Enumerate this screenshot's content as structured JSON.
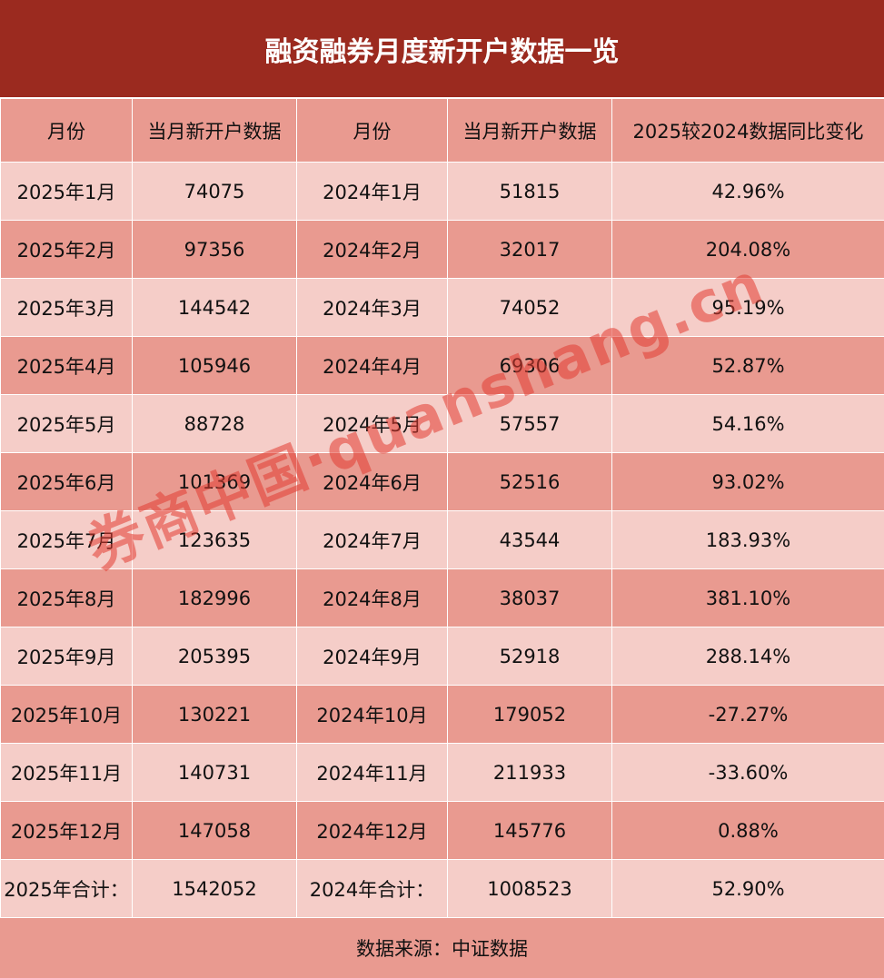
{
  "title": "融资融券月度新开户数据一览",
  "headers": [
    "月份",
    "当月新开户数据",
    "月份",
    "当月新开户数据",
    "2025较2024数据同比变化"
  ],
  "rows": [
    [
      "2025年1月",
      "74075",
      "2024年1月",
      "51815",
      "42.96%"
    ],
    [
      "2025年2月",
      "97356",
      "2024年2月",
      "32017",
      "204.08%"
    ],
    [
      "2025年3月",
      "144542",
      "2024年3月",
      "74052",
      "95.19%"
    ],
    [
      "2025年4月",
      "105946",
      "2024年4月",
      "69306",
      "52.87%"
    ],
    [
      "2025年5月",
      "88728",
      "2024年5月",
      "57557",
      "54.16%"
    ],
    [
      "2025年6月",
      "101369",
      "2024年6月",
      "52516",
      "93.02%"
    ],
    [
      "2025年7月",
      "123635",
      "2024年7月",
      "43544",
      "183.93%"
    ],
    [
      "2025年8月",
      "182996",
      "2024年8月",
      "38037",
      "381.10%"
    ],
    [
      "2025年9月",
      "205395",
      "2024年9月",
      "52918",
      "288.14%"
    ],
    [
      "2025年10月",
      "130221",
      "2024年10月",
      "179052",
      "-27.27%"
    ],
    [
      "2025年11月",
      "140731",
      "2024年11月",
      "211933",
      "-33.60%"
    ],
    [
      "2025年12月",
      "147058",
      "2024年12月",
      "145776",
      "0.88%"
    ],
    [
      "2025年合计：",
      "1542052",
      "2024年合计：",
      "1008523",
      "52.90%"
    ]
  ],
  "footer": "数据来源：中证数据",
  "watermark": "券商中国·quanshang.cn",
  "colors": {
    "title_bg": "#9B2A1F",
    "dark_row": "#E99A90",
    "light_row": "#F5CDC8"
  }
}
